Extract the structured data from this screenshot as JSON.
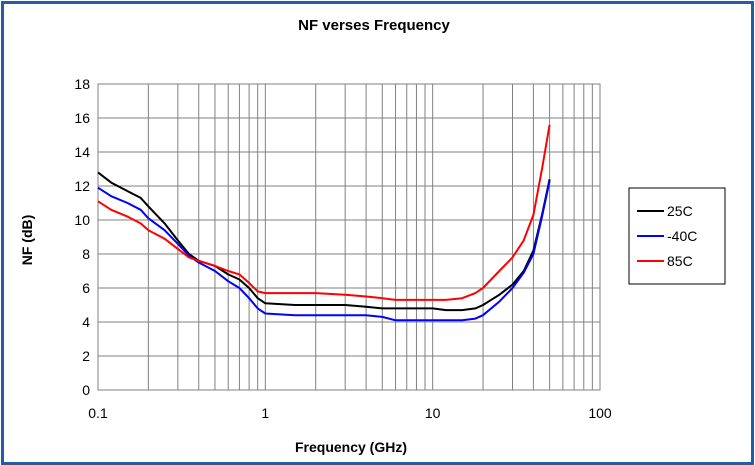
{
  "chart_data": {
    "type": "line",
    "title": "NF verses Frequency",
    "xlabel": "Frequency (GHz)",
    "ylabel": "NF (dB)",
    "xscale": "log",
    "xlim": [
      0.1,
      100
    ],
    "ylim": [
      0,
      18
    ],
    "x_ticks": [
      0.1,
      1,
      10,
      100
    ],
    "x_tick_labels": [
      "0.1",
      "1",
      "10",
      "100"
    ],
    "y_ticks": [
      0,
      2,
      4,
      6,
      8,
      10,
      12,
      14,
      16,
      18
    ],
    "y_tick_labels": [
      "0",
      "2",
      "4",
      "6",
      "8",
      "10",
      "12",
      "14",
      "16",
      "18"
    ],
    "grid": true,
    "legend_position": "right",
    "series": [
      {
        "name": "25C",
        "color": "#000000",
        "x": [
          0.1,
          0.12,
          0.15,
          0.18,
          0.2,
          0.25,
          0.3,
          0.35,
          0.4,
          0.5,
          0.6,
          0.7,
          0.8,
          0.9,
          1.0,
          1.5,
          2,
          3,
          4,
          5,
          6,
          8,
          10,
          12,
          15,
          18,
          20,
          25,
          30,
          35,
          40,
          45,
          50
        ],
        "y": [
          12.8,
          12.2,
          11.7,
          11.3,
          10.8,
          9.8,
          8.8,
          8.0,
          7.6,
          7.3,
          6.8,
          6.5,
          6.0,
          5.4,
          5.1,
          5.0,
          5.0,
          5.0,
          4.9,
          4.8,
          4.8,
          4.8,
          4.8,
          4.7,
          4.7,
          4.8,
          5.0,
          5.6,
          6.2,
          7.0,
          8.2,
          10.3,
          12.4
        ]
      },
      {
        "name": "-40C",
        "color": "#0000ff",
        "x": [
          0.1,
          0.12,
          0.15,
          0.18,
          0.2,
          0.25,
          0.3,
          0.35,
          0.4,
          0.5,
          0.6,
          0.7,
          0.8,
          0.9,
          1.0,
          1.5,
          2,
          3,
          4,
          5,
          6,
          8,
          10,
          12,
          15,
          18,
          20,
          25,
          30,
          35,
          40,
          45,
          50
        ],
        "y": [
          11.9,
          11.4,
          11.0,
          10.6,
          10.1,
          9.4,
          8.6,
          7.9,
          7.5,
          7.0,
          6.4,
          6.0,
          5.4,
          4.8,
          4.5,
          4.4,
          4.4,
          4.4,
          4.4,
          4.3,
          4.1,
          4.1,
          4.1,
          4.1,
          4.1,
          4.2,
          4.4,
          5.2,
          6.0,
          6.9,
          8.0,
          10.2,
          12.3
        ]
      },
      {
        "name": "85C",
        "color": "#ff0000",
        "x": [
          0.1,
          0.12,
          0.15,
          0.18,
          0.2,
          0.25,
          0.3,
          0.35,
          0.4,
          0.5,
          0.6,
          0.7,
          0.8,
          0.9,
          1.0,
          1.5,
          2,
          3,
          4,
          5,
          6,
          8,
          10,
          12,
          15,
          18,
          20,
          25,
          30,
          35,
          40,
          45,
          50
        ],
        "y": [
          11.1,
          10.6,
          10.2,
          9.8,
          9.4,
          8.9,
          8.3,
          7.8,
          7.6,
          7.3,
          7.0,
          6.8,
          6.3,
          5.8,
          5.7,
          5.7,
          5.7,
          5.6,
          5.5,
          5.4,
          5.3,
          5.3,
          5.3,
          5.3,
          5.4,
          5.7,
          6.0,
          7.0,
          7.8,
          8.8,
          10.3,
          13.0,
          15.6
        ]
      }
    ]
  }
}
